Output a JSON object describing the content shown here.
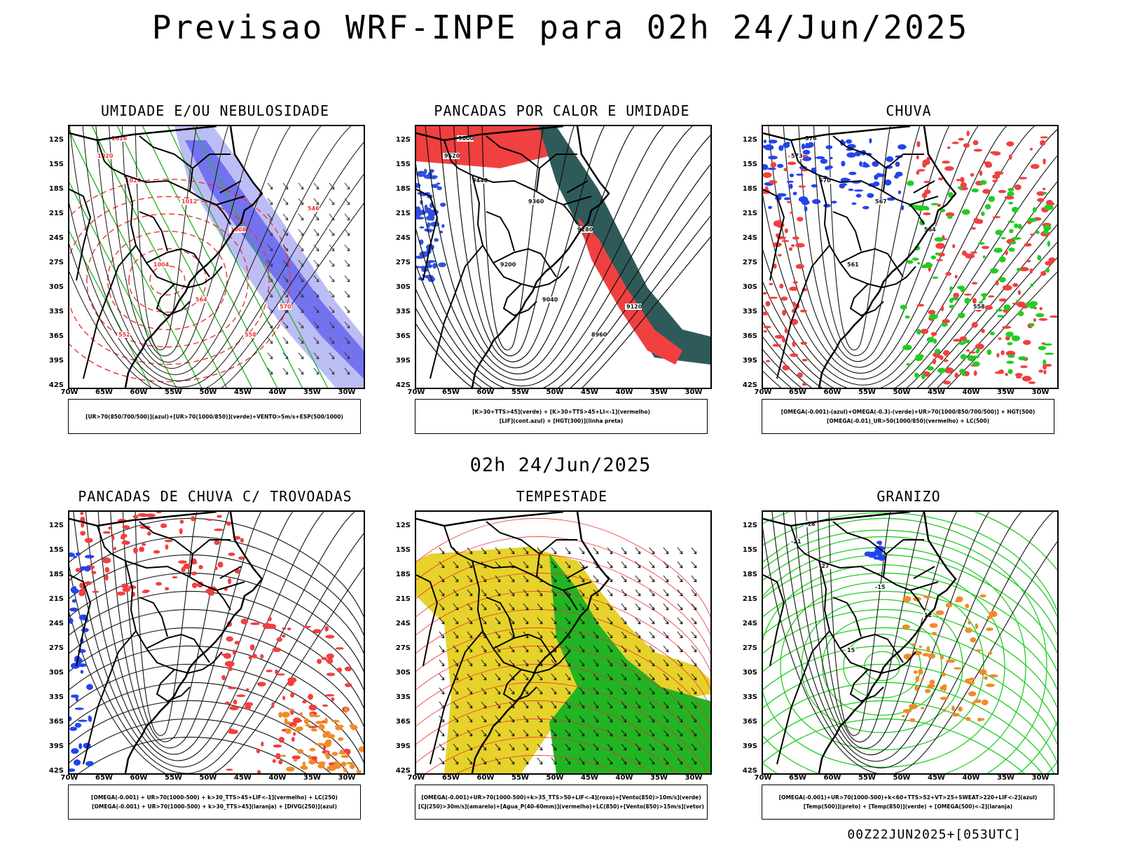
{
  "title": "Previsao WRF-INPE  para 02h 24/Jun/2025",
  "subtitle": "02h 24/Jun/2025",
  "footer": "00Z22JUN2025+[053UTC]",
  "y_ticks": [
    "12S",
    "15S",
    "18S",
    "21S",
    "24S",
    "27S",
    "30S",
    "33S",
    "36S",
    "39S",
    "42S"
  ],
  "x_ticks": [
    "70W",
    "65W",
    "60W",
    "55W",
    "50W",
    "45W",
    "40W",
    "35W",
    "30W"
  ],
  "panels": [
    {
      "title": "UMIDADE E/OU NEBULOSIDADE",
      "legend": [
        "[UR>70(850/700/500)](azul)+[UR>70(1000/850)](verde)+VENTO>5m/s+ESP(500/1000)"
      ],
      "colors": {
        "fill": "#6a6af0",
        "fill2": "#b6b6f5",
        "contour": "#2ab82a",
        "dashed": "#ee3333"
      },
      "labels": [
        "1016",
        "1020",
        "1024",
        "1012",
        "1008",
        "1004",
        "570",
        "564",
        "558",
        "552",
        "546"
      ]
    },
    {
      "title": "PANCADAS POR CALOR E UMIDADE",
      "legend": [
        "[K>30+TTS>45](verde) + [K>30+TTS>45+LI<-1](vermelho)",
        "[LIF](cont.azul) + [HGT(300)](linha preta)"
      ],
      "colors": {
        "fill": "#f04040",
        "fill2": "#2f5a5a",
        "contour": "#2f4fe0"
      },
      "labels": [
        "9600",
        "9520",
        "9440",
        "9360",
        "9280",
        "9200",
        "9120",
        "9040",
        "8960"
      ]
    },
    {
      "title": "CHUVA",
      "legend": [
        "[OMEGA(-0.001)-(azul)+OMEGA(-0.3)-(verde)+UR>70(1000/850/700/500)] + HGT(500)",
        "[OMEGA(-0.01)_UR>50(1000/850)(vermelho) + LC(500)"
      ],
      "colors": {
        "fill": "#f04040",
        "fill2": "#22cc22",
        "contour": "#2244ee"
      },
      "labels": [
        "576",
        "573",
        "570",
        "567",
        "564",
        "561",
        "558"
      ]
    },
    {
      "title": "PANCADAS DE CHUVA C/ TROVOADAS",
      "legend": [
        "[OMEGA(-0.001) + UR>70(1000-500) + k>30_TTS>45+LIF<-1](vermelho) + LC(250)",
        "[OMEGA(-0.001) + UR>70(1000-500) + k>30_TTS>45](laranja) + [DIVG(250)](azul)"
      ],
      "colors": {
        "fill": "#f04040",
        "fill2": "#f08c28",
        "contour": "#2244ee"
      },
      "labels": []
    },
    {
      "title": "TEMPESTADE",
      "legend": [
        "[OMEGA(-0.001)+UR>70(1000-500)+k>35_TTS>50+LIF<-4](roxo)+[Vento(850)>10m/s](verde)",
        "[CJ(250)>30m/s](amarelo)+[Agua_P(40-60mm)](vermelho)+LC(850)+[Vento(850)>15m/s](vetor)"
      ],
      "colors": {
        "fill": "#e6d22a",
        "fill2": "#22b422",
        "contour": "#ee3333"
      },
      "labels": []
    },
    {
      "title": "GRANIZO",
      "legend": [
        "[OMEGA(-0.001)+UR>70(1000-500)+k<60+TTS>52+VT>25+SWEAT>220+LIF<-2](azul)",
        "[Temp(500)](preto) + [Temp(850)](verde) + [OMEGA(500)<-2](laranja)"
      ],
      "colors": {
        "fill": "#f08c28",
        "fill2": "#2244ee",
        "contour": "#22cc22"
      },
      "labels": [
        "-18",
        "-21",
        "-27",
        "-15",
        "12",
        "15"
      ]
    }
  ]
}
